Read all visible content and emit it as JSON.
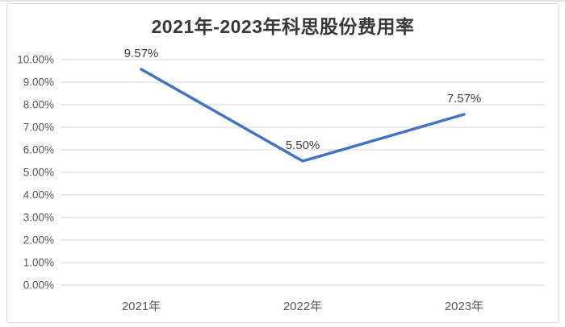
{
  "chart_data": {
    "type": "line",
    "title": "2021年-2023年科思股份费用率",
    "categories": [
      "2021年",
      "2022年",
      "2023年"
    ],
    "values": [
      9.57,
      5.5,
      7.57
    ],
    "data_labels": [
      "9.57%",
      "5.50%",
      "7.57%"
    ],
    "y_tick_labels": [
      "0.00%",
      "1.00%",
      "2.00%",
      "3.00%",
      "4.00%",
      "5.00%",
      "6.00%",
      "7.00%",
      "8.00%",
      "9.00%",
      "10.00%"
    ],
    "ylim": [
      0,
      10
    ],
    "y_tick_step": 1,
    "xlabel": "",
    "ylabel": "",
    "grid": true,
    "legend": "none",
    "markers": false,
    "colors": {
      "line": "#4472C4",
      "gridline": "#D9D9D9",
      "axis_tick_text": "#595959",
      "data_label_text": "#404040",
      "title_text": "#383838",
      "frame_border": "#D9D9D9",
      "background": "#FFFFFF"
    }
  }
}
